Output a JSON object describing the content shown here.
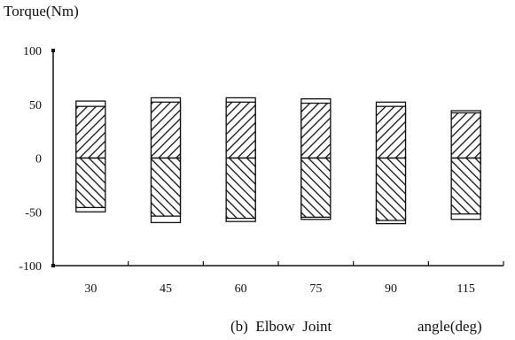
{
  "chart_data": {
    "type": "bar",
    "title": "Torque(Nm)",
    "caption": "(b)  Elbow  Joint",
    "xlabel": "angle(deg)",
    "ylabel": "Torque(Nm)",
    "ylim": [
      -100,
      100
    ],
    "yticks": [
      100,
      50,
      0,
      -50,
      -100
    ],
    "categories": [
      "30",
      "45",
      "60",
      "75",
      "90",
      "115"
    ],
    "series": [
      {
        "fill": "diagonal-hatch-up",
        "values": [
          48,
          52,
          52,
          51,
          48,
          42
        ]
      },
      {
        "fill": "diagonal-hatch-down",
        "values": [
          -46,
          -54,
          -56,
          -55,
          -58,
          -52
        ]
      },
      {
        "fill": "white",
        "values": [
          53,
          56,
          56,
          55,
          52,
          44
        ]
      },
      {
        "fill": "white",
        "values": [
          -50,
          -60,
          -59,
          -57,
          -61,
          -57
        ]
      }
    ],
    "grid": false,
    "colors": {
      "ink": "#111111",
      "background": "#ffffff"
    }
  }
}
